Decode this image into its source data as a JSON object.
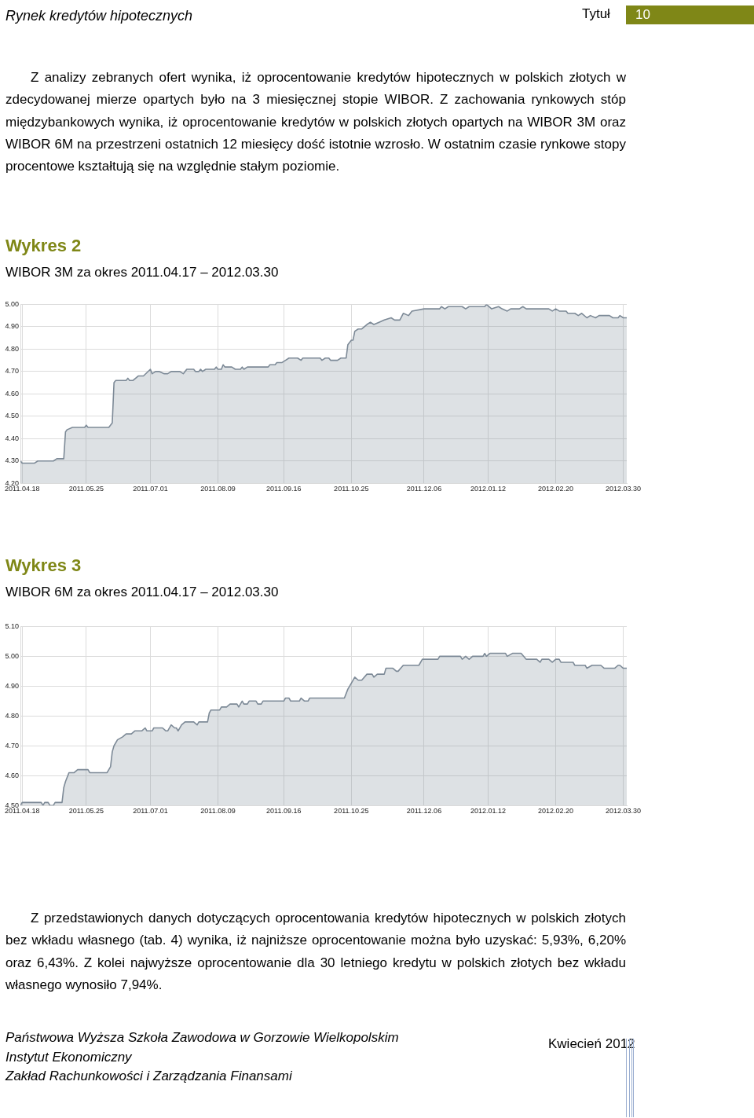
{
  "chart_data": [
    {
      "type": "area",
      "title": "Wykres 2",
      "subtitle": "WIBOR 3M za okres 2011.04.17 – 2012.03.30",
      "annotations": [
        "Rynek kredytów hipotecznych",
        "Tytuł",
        "10",
        "Z analizy zebranych ofert wynika, iż oprocentowanie kredytów hipotecznych w polskich złotych w zdecydowanej mierze opartych było na 3 miesięcznej stopie WIBOR. Z zachowania rynkowych stóp międzybankowych wynika, iż oprocentowanie kredytów w polskich złotych opartych na WIBOR 3M oraz WIBOR 6M na przestrzeni ostatnich 12 miesięcy dość istotnie wzrosło. W ostatnim czasie rynkowe stopy procentowe kształtują się na względnie stałym poziomie."
      ],
      "x": [
        "2011-04-17",
        "2011-04-18",
        "2011-04-25",
        "2011-04-27",
        "2011-05-06",
        "2011-05-08",
        "2011-05-12",
        "2011-05-13",
        "2011-05-14",
        "2011-05-17",
        "2011-05-24",
        "2011-05-25",
        "2011-05-26",
        "2011-06-07",
        "2011-06-09",
        "2011-06-10",
        "2011-06-11",
        "2011-06-17",
        "2011-06-18",
        "2011-06-19",
        "2011-06-21",
        "2011-06-24",
        "2011-06-27",
        "2011-07-01",
        "2011-07-02",
        "2011-07-04",
        "2011-07-06",
        "2011-07-09",
        "2011-07-11",
        "2011-07-13",
        "2011-07-18",
        "2011-07-20",
        "2011-07-22",
        "2011-07-26",
        "2011-07-27",
        "2011-07-29",
        "2011-07-30",
        "2011-07-31",
        "2011-08-02",
        "2011-08-07",
        "2011-08-08",
        "2011-08-09",
        "2011-08-11",
        "2011-08-12",
        "2011-08-13",
        "2011-08-17",
        "2011-08-19",
        "2011-08-22",
        "2011-08-23",
        "2011-08-24",
        "2011-08-26",
        "2011-09-07",
        "2011-09-08",
        "2011-09-11",
        "2011-09-12",
        "2011-09-15",
        "2011-09-17",
        "2011-09-19",
        "2011-09-24",
        "2011-09-26",
        "2011-09-27",
        "2011-10-07",
        "2011-10-08",
        "2011-10-10",
        "2011-10-12",
        "2011-10-13",
        "2011-10-17",
        "2011-10-19",
        "2011-10-22",
        "2011-10-23",
        "2011-10-25",
        "2011-10-26",
        "2011-10-27",
        "2011-10-29",
        "2011-10-31",
        "2011-11-03",
        "2011-11-05",
        "2011-11-07",
        "2011-11-10",
        "2011-11-13",
        "2011-11-17",
        "2011-11-19",
        "2011-11-22",
        "2011-11-24",
        "2011-11-27",
        "2011-11-29",
        "2011-12-06",
        "2011-12-15",
        "2011-12-16",
        "2011-12-18",
        "2011-12-20",
        "2011-12-28",
        "2011-12-30",
        "2012-01-01",
        "2012-01-10",
        "2012-01-11",
        "2012-01-14",
        "2012-01-18",
        "2012-01-20",
        "2012-01-23",
        "2012-01-25",
        "2012-01-30",
        "2012-02-01",
        "2012-02-03",
        "2012-02-16",
        "2012-02-18",
        "2012-02-20",
        "2012-02-22",
        "2012-02-26",
        "2012-02-27",
        "2012-03-02",
        "2012-03-04",
        "2012-03-06",
        "2012-03-09",
        "2012-03-11",
        "2012-03-14",
        "2012-03-16",
        "2012-03-22",
        "2012-03-24",
        "2012-03-27",
        "2012-03-28",
        "2012-03-30",
        "2012-04-01"
      ],
      "series": [
        {
          "color": "#7d8a97",
          "values": [
            4.3,
            4.29,
            4.29,
            4.3,
            4.3,
            4.31,
            4.31,
            4.43,
            4.44,
            4.45,
            4.45,
            4.46,
            4.45,
            4.45,
            4.47,
            4.65,
            4.66,
            4.66,
            4.67,
            4.66,
            4.66,
            4.68,
            4.68,
            4.71,
            4.69,
            4.7,
            4.7,
            4.69,
            4.69,
            4.7,
            4.7,
            4.69,
            4.71,
            4.71,
            4.7,
            4.7,
            4.71,
            4.7,
            4.71,
            4.71,
            4.72,
            4.71,
            4.71,
            4.73,
            4.72,
            4.72,
            4.71,
            4.71,
            4.72,
            4.71,
            4.72,
            4.72,
            4.73,
            4.73,
            4.74,
            4.74,
            4.75,
            4.76,
            4.76,
            4.75,
            4.76,
            4.76,
            4.75,
            4.76,
            4.76,
            4.75,
            4.75,
            4.76,
            4.76,
            4.82,
            4.84,
            4.84,
            4.88,
            4.89,
            4.89,
            4.91,
            4.92,
            4.91,
            4.92,
            4.93,
            4.94,
            4.93,
            4.93,
            4.96,
            4.95,
            4.97,
            4.98,
            4.98,
            4.99,
            4.98,
            4.99,
            4.99,
            4.98,
            4.99,
            4.99,
            5.0,
            4.98,
            4.99,
            4.98,
            4.97,
            4.98,
            4.98,
            4.99,
            4.98,
            4.98,
            4.97,
            4.98,
            4.97,
            4.97,
            4.96,
            4.96,
            4.95,
            4.96,
            4.94,
            4.95,
            4.94,
            4.95,
            4.95,
            4.94,
            4.94,
            4.95,
            4.94,
            4.94
          ]
        }
      ],
      "xlim": [
        "2011-04-17",
        "2012-04-01"
      ],
      "xticks": [
        {
          "value": "2011-04-18",
          "label": "2011.04.18"
        },
        {
          "value": "2011-05-25",
          "label": "2011.05.25"
        },
        {
          "value": "2011-07-01",
          "label": "2011.07.01"
        },
        {
          "value": "2011-08-09",
          "label": "2011.08.09"
        },
        {
          "value": "2011-09-16",
          "label": "2011.09.16"
        },
        {
          "value": "2011-10-25",
          "label": "2011.10.25"
        },
        {
          "value": "2011-12-06",
          "label": "2011.12.06"
        },
        {
          "value": "2012-01-12",
          "label": "2012.01.12"
        },
        {
          "value": "2012-02-20",
          "label": "2012.02.20"
        },
        {
          "value": "2012-03-30",
          "label": "2012.03.30"
        }
      ],
      "ylim": [
        4.2,
        5.0
      ],
      "yticks": [
        {
          "value": 4.2,
          "label": "4.20"
        },
        {
          "value": 4.3,
          "label": "4.30"
        },
        {
          "value": 4.4,
          "label": "4.40"
        },
        {
          "value": 4.5,
          "label": "4.50"
        },
        {
          "value": 4.6,
          "label": "4.60"
        },
        {
          "value": 4.7,
          "label": "4.70"
        },
        {
          "value": 4.8,
          "label": "4.80"
        },
        {
          "value": 4.9,
          "label": "4.90"
        },
        {
          "value": 5.0,
          "label": "5.00"
        }
      ],
      "grid": true,
      "marker": "none"
    },
    {
      "type": "area",
      "title": "Wykres 3",
      "subtitle": "WIBOR 6M za okres 2011.04.17 – 2012.03.30",
      "annotations": [
        "Z przedstawionych danych dotyczących oprocentowania kredytów hipotecznych w polskich złotych bez wkładu własnego (tab. 4) wynika, iż najniższe oprocentowanie można było uzyskać: 5,93%, 6,20% oraz 6,43%. Z kolei najwyższe oprocentowanie dla 30 letniego kredytu w polskich złotych bez wkładu własnego wynosiło 7,94%.",
        "Państwowa Wyższa Szkoła Zawodowa w Gorzowie Wielkopolskim",
        "Instytut Ekonomiczny",
        "Zakład Rachunkowości i Zarządzania Finansami",
        "Kwiecień 2012"
      ],
      "x": [
        "2011-04-17",
        "2011-04-18",
        "2011-04-29",
        "2011-04-30",
        "2011-05-01",
        "2011-05-03",
        "2011-05-04",
        "2011-05-06",
        "2011-05-07",
        "2011-05-11",
        "2011-05-12",
        "2011-05-13",
        "2011-05-15",
        "2011-05-18",
        "2011-05-20",
        "2011-05-26",
        "2011-05-27",
        "2011-06-06",
        "2011-06-08",
        "2011-06-09",
        "2011-06-10",
        "2011-06-12",
        "2011-06-15",
        "2011-06-17",
        "2011-06-20",
        "2011-06-22",
        "2011-06-26",
        "2011-06-28",
        "2011-06-29",
        "2011-07-02",
        "2011-07-03",
        "2011-07-08",
        "2011-07-10",
        "2011-07-11",
        "2011-07-13",
        "2011-07-15",
        "2011-07-16",
        "2011-07-17",
        "2011-07-19",
        "2011-07-21",
        "2011-07-26",
        "2011-07-28",
        "2011-07-29",
        "2011-08-03",
        "2011-08-04",
        "2011-08-05",
        "2011-08-10",
        "2011-08-11",
        "2011-08-14",
        "2011-08-16",
        "2011-08-20",
        "2011-08-21",
        "2011-08-23",
        "2011-08-24",
        "2011-08-26",
        "2011-08-27",
        "2011-08-31",
        "2011-09-01",
        "2011-09-03",
        "2011-09-04",
        "2011-09-16",
        "2011-09-17",
        "2011-09-19",
        "2011-09-20",
        "2011-09-25",
        "2011-09-26",
        "2011-09-28",
        "2011-09-30",
        "2011-10-01",
        "2011-10-21",
        "2011-10-23",
        "2011-10-25",
        "2011-10-27",
        "2011-10-29",
        "2011-10-31",
        "2011-11-03",
        "2011-11-06",
        "2011-11-07",
        "2011-11-09",
        "2011-11-13",
        "2011-11-14",
        "2011-11-18",
        "2011-11-20",
        "2011-11-21",
        "2011-11-24",
        "2011-12-03",
        "2011-12-05",
        "2011-12-14",
        "2011-12-15",
        "2011-12-27",
        "2011-12-28",
        "2011-12-30",
        "2012-01-01",
        "2012-01-03",
        "2012-01-09",
        "2012-01-10",
        "2012-01-11",
        "2012-01-13",
        "2012-01-22",
        "2012-01-23",
        "2012-01-26",
        "2012-01-31",
        "2012-02-03",
        "2012-02-09",
        "2012-02-11",
        "2012-02-12",
        "2012-02-16",
        "2012-02-18",
        "2012-02-20",
        "2012-02-22",
        "2012-02-23",
        "2012-03-01",
        "2012-03-02",
        "2012-03-08",
        "2012-03-09",
        "2012-03-12",
        "2012-03-17",
        "2012-03-19",
        "2012-03-25",
        "2012-03-27",
        "2012-03-28",
        "2012-03-30",
        "2012-04-01"
      ],
      "series": [
        {
          "color": "#7d8a97",
          "values": [
            4.5,
            4.51,
            4.51,
            4.5,
            4.51,
            4.51,
            4.5,
            4.5,
            4.51,
            4.51,
            4.56,
            4.58,
            4.61,
            4.61,
            4.62,
            4.62,
            4.61,
            4.61,
            4.63,
            4.68,
            4.7,
            4.72,
            4.73,
            4.74,
            4.74,
            4.75,
            4.75,
            4.76,
            4.75,
            4.75,
            4.76,
            4.76,
            4.75,
            4.75,
            4.77,
            4.76,
            4.76,
            4.75,
            4.77,
            4.78,
            4.78,
            4.77,
            4.78,
            4.78,
            4.81,
            4.82,
            4.82,
            4.83,
            4.83,
            4.84,
            4.84,
            4.83,
            4.85,
            4.84,
            4.84,
            4.85,
            4.85,
            4.84,
            4.84,
            4.85,
            4.85,
            4.86,
            4.86,
            4.85,
            4.85,
            4.86,
            4.85,
            4.85,
            4.86,
            4.86,
            4.89,
            4.91,
            4.93,
            4.92,
            4.92,
            4.94,
            4.94,
            4.93,
            4.94,
            4.94,
            4.96,
            4.96,
            4.95,
            4.95,
            4.97,
            4.97,
            4.99,
            4.99,
            5.0,
            5.0,
            4.99,
            5.0,
            4.99,
            5.0,
            5.0,
            5.01,
            5.0,
            5.01,
            5.01,
            5.0,
            5.01,
            5.01,
            4.99,
            4.99,
            4.98,
            4.99,
            4.99,
            4.98,
            4.99,
            4.99,
            4.98,
            4.98,
            4.97,
            4.97,
            4.96,
            4.97,
            4.97,
            4.96,
            4.96,
            4.97,
            4.97,
            4.96,
            4.96
          ]
        }
      ],
      "xlim": [
        "2011-04-17",
        "2012-04-01"
      ],
      "xticks": [
        {
          "value": "2011-04-18",
          "label": "2011.04.18"
        },
        {
          "value": "2011-05-25",
          "label": "2011.05.25"
        },
        {
          "value": "2011-07-01",
          "label": "2011.07.01"
        },
        {
          "value": "2011-08-09",
          "label": "2011.08.09"
        },
        {
          "value": "2011-09-16",
          "label": "2011.09.16"
        },
        {
          "value": "2011-10-25",
          "label": "2011.10.25"
        },
        {
          "value": "2011-12-06",
          "label": "2011.12.06"
        },
        {
          "value": "2012-01-12",
          "label": "2012.01.12"
        },
        {
          "value": "2012-02-20",
          "label": "2012.02.20"
        },
        {
          "value": "2012-03-30",
          "label": "2012.03.30"
        }
      ],
      "ylim": [
        4.5,
        5.1
      ],
      "yticks": [
        {
          "value": 4.5,
          "label": "4.50"
        },
        {
          "value": 4.6,
          "label": "4.60"
        },
        {
          "value": 4.7,
          "label": "4.70"
        },
        {
          "value": 4.8,
          "label": "4.80"
        },
        {
          "value": 4.9,
          "label": "4.90"
        },
        {
          "value": 5.0,
          "label": "5.00"
        },
        {
          "value": 5.1,
          "label": "5.10"
        }
      ],
      "grid": true,
      "marker": "none"
    }
  ]
}
